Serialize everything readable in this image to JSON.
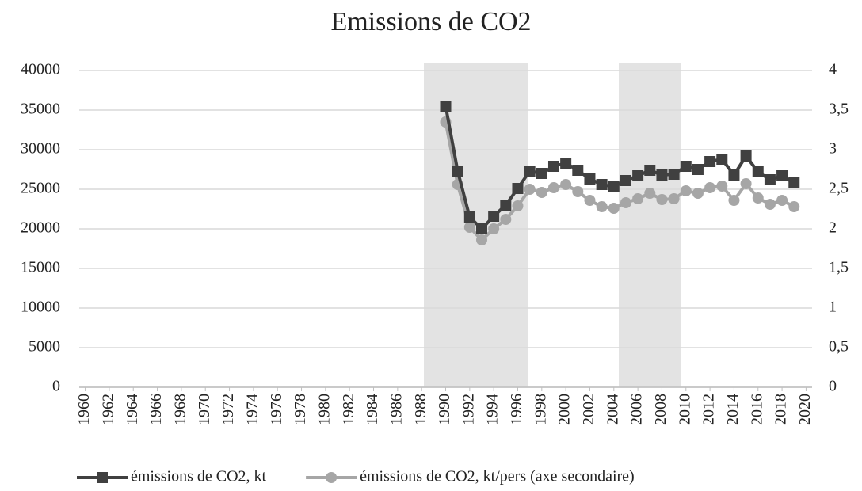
{
  "chart_data": {
    "type": "line",
    "title": "Emissions de CO2",
    "x": [
      1990,
      1991,
      1992,
      1993,
      1994,
      1995,
      1996,
      1997,
      1998,
      1999,
      2000,
      2001,
      2002,
      2003,
      2004,
      2005,
      2006,
      2007,
      2008,
      2009,
      2010,
      2011,
      2012,
      2013,
      2014,
      2015,
      2016,
      2017,
      2018,
      2019
    ],
    "xlim": [
      1959.5,
      2020.5
    ],
    "xticks": [
      1960,
      1962,
      1964,
      1966,
      1968,
      1970,
      1972,
      1974,
      1976,
      1978,
      1980,
      1982,
      1984,
      1986,
      1988,
      1990,
      1992,
      1994,
      1996,
      1998,
      2000,
      2002,
      2004,
      2006,
      2008,
      2010,
      2012,
      2014,
      2016,
      2018,
      2020
    ],
    "ylim": [
      0,
      40000
    ],
    "yticks": [
      0,
      5000,
      10000,
      15000,
      20000,
      25000,
      30000,
      35000,
      40000
    ],
    "y2lim": [
      0,
      4
    ],
    "y2ticks": [
      0,
      {
        "value": 0.5,
        "label": "0,5"
      },
      1,
      {
        "value": 1.5,
        "label": "1,5"
      },
      2,
      {
        "value": 2.5,
        "label": "2,5"
      },
      3,
      {
        "value": 3.5,
        "label": "3,5"
      },
      4
    ],
    "grid": true,
    "legend": "bottom",
    "series": [
      {
        "name": "émissions de CO2, kt",
        "color": "#404040",
        "marker": "square",
        "values": [
          35500,
          27300,
          21500,
          20000,
          21600,
          23000,
          25100,
          27300,
          27000,
          27900,
          28300,
          27400,
          26300,
          25600,
          25300,
          26100,
          26700,
          27400,
          26800,
          26900,
          27900,
          27500,
          28500,
          28800,
          26800,
          29200,
          27200,
          26200,
          26700,
          25800
        ]
      },
      {
        "name": "émissions de CO2, kt/pers (axe secondaire)",
        "color": "#a6a6a6",
        "marker": "circle",
        "axis": "y2",
        "values": [
          3.35,
          2.56,
          2.02,
          1.86,
          2.0,
          2.12,
          2.29,
          2.5,
          2.46,
          2.52,
          2.56,
          2.47,
          2.36,
          2.28,
          2.26,
          2.33,
          2.38,
          2.45,
          2.37,
          2.38,
          2.48,
          2.45,
          2.52,
          2.54,
          2.36,
          2.57,
          2.39,
          2.31,
          2.36,
          2.28
        ]
      }
    ]
  }
}
